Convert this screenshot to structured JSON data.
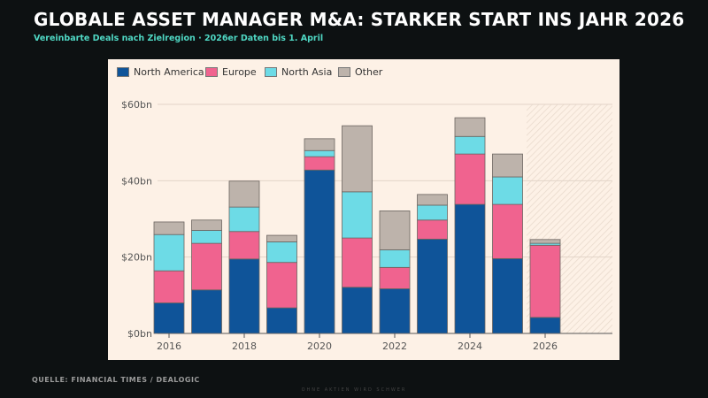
{
  "title": "GLOBALE ASSET MANAGER M&A: STARKER START INS JAHR 2026",
  "subtitle": "Vereinbarte Deals nach Zielregion · 2026er Daten bis 1. April",
  "source": "QUELLE: FINANCIAL TIMES / DEALOGIC",
  "footer": "OHNE AKTIEN WIRD SCHWER",
  "chart_data": {
    "type": "bar",
    "stacked": true,
    "categories": [
      "2016",
      "2017",
      "2018",
      "2019",
      "2020",
      "2021",
      "2022",
      "2023",
      "2024",
      "2025",
      "2026"
    ],
    "x_tick_labels": [
      "2016",
      "2018",
      "2020",
      "2022",
      "2024",
      "2026"
    ],
    "y_tick_labels": [
      "$0bn",
      "$20bn",
      "$40bn",
      "$60bn"
    ],
    "y_ticks": [
      0,
      20,
      40,
      60
    ],
    "ylim": [
      0,
      60
    ],
    "grid": true,
    "legend": "top-left",
    "ylabel": "",
    "xlabel": "",
    "highlight_partial_year": "2026",
    "series": [
      {
        "name": "North America",
        "color": "#0f5499",
        "values": [
          8.0,
          11.4,
          19.5,
          6.7,
          42.8,
          12.1,
          11.7,
          24.7,
          33.8,
          19.6,
          4.2
        ]
      },
      {
        "name": "Europe",
        "color": "#f0638f",
        "values": [
          8.4,
          12.2,
          7.2,
          11.9,
          3.5,
          12.9,
          5.6,
          5.0,
          13.2,
          14.2,
          18.9
        ]
      },
      {
        "name": "North Asia",
        "color": "#6ddbe6",
        "values": [
          9.5,
          3.4,
          6.4,
          5.4,
          1.6,
          12.1,
          4.6,
          3.9,
          4.6,
          7.2,
          0.5
        ]
      },
      {
        "name": "Other",
        "color": "#bdb3ab",
        "values": [
          3.3,
          2.7,
          6.8,
          1.7,
          3.1,
          17.3,
          10.2,
          2.8,
          4.9,
          6.0,
          1.0
        ]
      }
    ]
  }
}
